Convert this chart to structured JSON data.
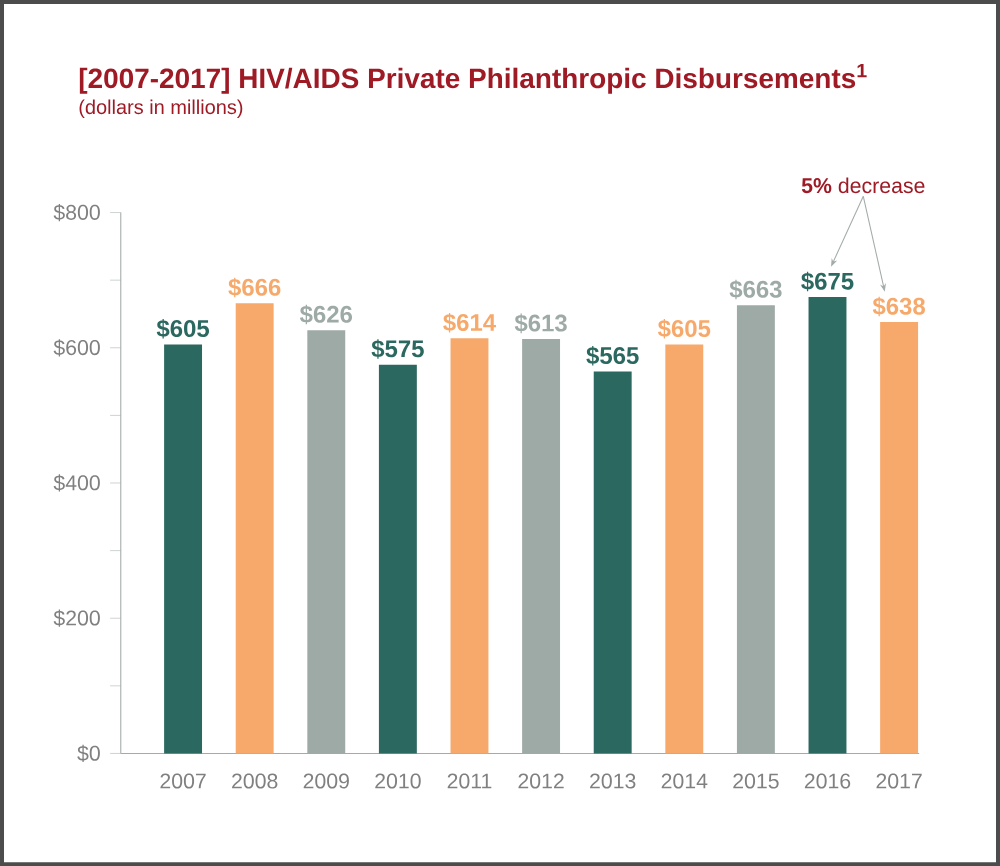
{
  "chart_data": {
    "type": "bar",
    "title": "[2007-2017] HIV/AIDS Private Philanthropic Disbursements$^{1}$",
    "subtitle": "(dollars in millions)",
    "annotations": [
      "**5%** decrease"
    ],
    "categories": [
      "2007",
      "2008",
      "2009",
      "2010",
      "2011",
      "2012",
      "2013",
      "2014",
      "2015",
      "2016",
      "2017"
    ],
    "values": [
      605,
      666,
      626,
      575,
      614,
      613,
      565,
      605,
      663,
      675,
      638
    ],
    "value_labels": [
      "$605",
      "$666",
      "$626",
      "$575",
      "$614",
      "$613",
      "$565",
      "$605",
      "$663",
      "$675",
      "$638"
    ],
    "colors": [
      "#2b685f",
      "#f6a96a",
      "#9eaaa5",
      "#2b685f",
      "#f6a96a",
      "#9eaaa5",
      "#2b685f",
      "#f6a96a",
      "#9eaaa5",
      "#2b685f",
      "#f6a96a"
    ],
    "ylim": [
      0,
      800
    ],
    "yticks": [
      {
        "value": 0,
        "label": "$0"
      },
      {
        "value": 100,
        "label": null
      },
      {
        "value": 200,
        "label": "$200"
      },
      {
        "value": 300,
        "label": null
      },
      {
        "value": 400,
        "label": "$400"
      },
      {
        "value": 500,
        "label": null
      },
      {
        "value": 600,
        "label": "$600"
      },
      {
        "value": 700,
        "label": null
      },
      {
        "value": 800,
        "label": "$800"
      }
    ],
    "grid": false
  }
}
